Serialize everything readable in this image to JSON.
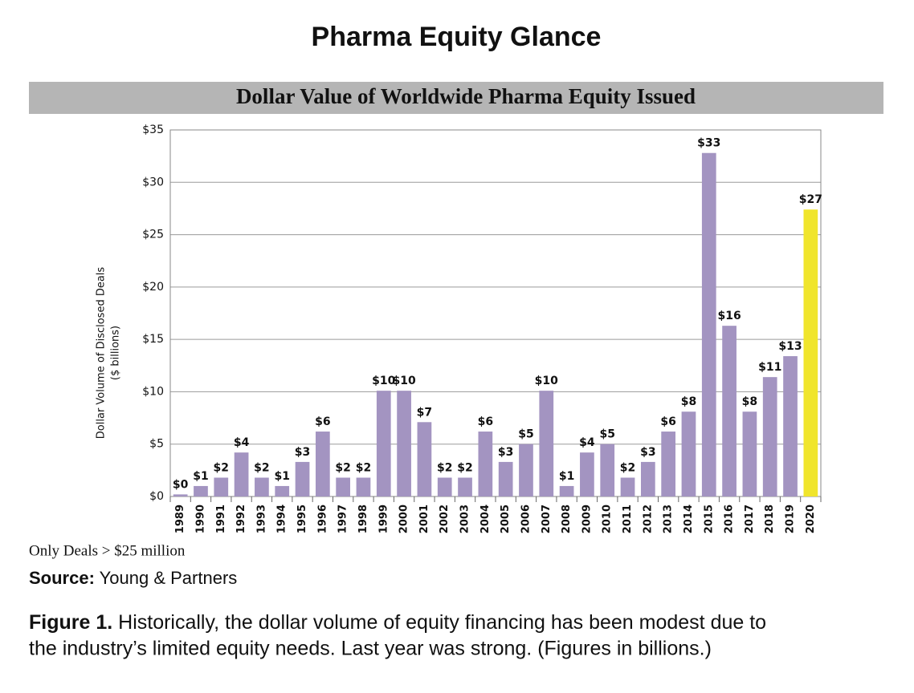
{
  "page_title": "Pharma Equity Glance",
  "chart_data": {
    "type": "bar",
    "title": "Dollar Value of Worldwide Pharma Equity Issued",
    "y_label": [
      "Dollar Volume of Disclosed Deals",
      "($ billions)"
    ],
    "categories": [
      "1989",
      "1990",
      "1991",
      "1992",
      "1993",
      "1994",
      "1995",
      "1996",
      "1997",
      "1998",
      "1999",
      "2000",
      "2001",
      "2002",
      "2003",
      "2004",
      "2005",
      "2006",
      "2007",
      "2008",
      "2009",
      "2010",
      "2011",
      "2012",
      "2013",
      "2014",
      "2015",
      "2016",
      "2017",
      "2018",
      "2019",
      "2020"
    ],
    "values": [
      0.2,
      1.0,
      1.8,
      4.2,
      1.8,
      1.0,
      3.3,
      6.2,
      1.8,
      1.8,
      10.1,
      10.1,
      7.1,
      1.8,
      1.8,
      6.2,
      3.3,
      5.0,
      10.1,
      1.0,
      4.2,
      5.0,
      1.8,
      3.3,
      6.2,
      8.1,
      32.8,
      16.3,
      8.1,
      11.4,
      13.4,
      27.4
    ],
    "value_labels": [
      "$0",
      "$1",
      "$2",
      "$4",
      "$2",
      "$1",
      "$3",
      "$6",
      "$2",
      "$2",
      "$10",
      "$10",
      "$7",
      "$2",
      "$2",
      "$6",
      "$3",
      "$5",
      "$10",
      "$1",
      "$4",
      "$5",
      "$2",
      "$3",
      "$6",
      "$8",
      "$33",
      "$16",
      "$8",
      "$11",
      "$13",
      "$27"
    ],
    "colors": [
      "#a394c1",
      "#a394c1",
      "#a394c1",
      "#a394c1",
      "#a394c1",
      "#a394c1",
      "#a394c1",
      "#a394c1",
      "#a394c1",
      "#a394c1",
      "#a394c1",
      "#a394c1",
      "#a394c1",
      "#a394c1",
      "#a394c1",
      "#a394c1",
      "#a394c1",
      "#a394c1",
      "#a394c1",
      "#a394c1",
      "#a394c1",
      "#a394c1",
      "#a394c1",
      "#a394c1",
      "#a394c1",
      "#a394c1",
      "#a394c1",
      "#a394c1",
      "#a394c1",
      "#a394c1",
      "#a394c1",
      "#f0e52c"
    ],
    "ylim": [
      0,
      35
    ],
    "yticks": [
      {
        "value": 0,
        "label": "$0"
      },
      {
        "value": 5,
        "label": "$5"
      },
      {
        "value": 10,
        "label": "$10"
      },
      {
        "value": 15,
        "label": "$15"
      },
      {
        "value": 20,
        "label": "$20"
      },
      {
        "value": 25,
        "label": "$25"
      },
      {
        "value": 30,
        "label": "$30"
      },
      {
        "value": 35,
        "label": "$35"
      }
    ],
    "grid": true
  },
  "note": "Only Deals > $25 million",
  "source": {
    "label": "Source:",
    "text": "Young & Partners"
  },
  "caption": {
    "label": "Figure 1.",
    "lines": [
      "Historically, the dollar volume of equity financing has been modest due to",
      "the industry’s limited equity needs. Last year was strong. (Figures in billions.)"
    ]
  }
}
